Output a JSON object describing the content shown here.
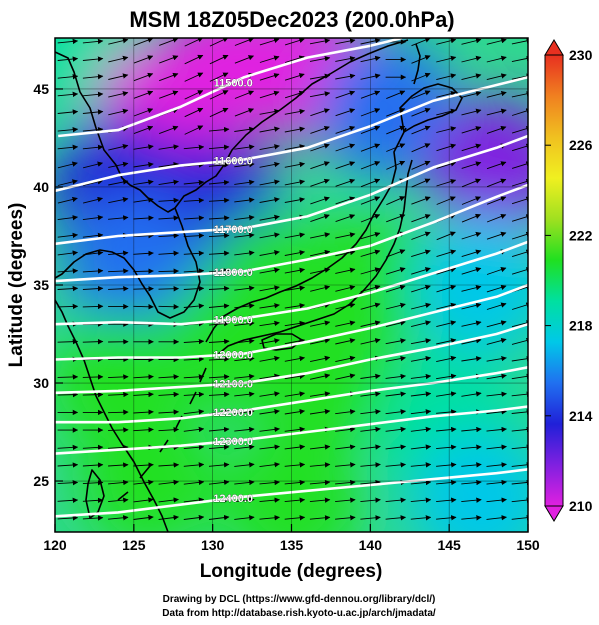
{
  "title": "MSM 18Z05Dec2023 (200.0hPa)",
  "credits": {
    "line1": "Drawing by DCL (https://www.gfd-dennou.org/library/dcl/)",
    "line2": "Data from http://database.rish.kyoto-u.ac.jp/arch/jmadata/"
  },
  "chart_data": {
    "type": "heatmap",
    "title": "MSM 18Z05Dec2023 (200.0hPa)",
    "xlabel": "Longitude (degrees)",
    "ylabel": "Latitude  (degrees)",
    "xlim": [
      120,
      150
    ],
    "ylim": [
      22.4,
      47.6
    ],
    "x_ticks": [
      "120",
      "125",
      "130",
      "135",
      "140",
      "145",
      "150"
    ],
    "y_ticks": [
      "25",
      "30",
      "35",
      "40",
      "45"
    ],
    "grid": true,
    "colorbar": {
      "range": [
        210,
        230
      ],
      "tick_labels": [
        "210",
        "214",
        "218",
        "222",
        "226",
        "230"
      ],
      "colors": [
        "#e020e0",
        "#8020e0",
        "#2020d8",
        "#2070f0",
        "#00c8e8",
        "#00e0a0",
        "#20e020",
        "#a0e020",
        "#f0f020",
        "#f0c020",
        "#f08020",
        "#e83020"
      ]
    },
    "contours": [
      {
        "label": "11500.0",
        "points": [
          [
            120.2,
            42.6
          ],
          [
            124,
            42.9
          ],
          [
            128,
            44.1
          ],
          [
            132,
            45.6
          ],
          [
            136,
            46.6
          ],
          [
            140,
            47.2
          ],
          [
            142,
            47.6
          ]
        ]
      },
      {
        "label": "11600.0",
        "points": [
          [
            120,
            39.8
          ],
          [
            124,
            40.6
          ],
          [
            128,
            41.1
          ],
          [
            132,
            41.4
          ],
          [
            136,
            42.0
          ],
          [
            140,
            43.1
          ],
          [
            144,
            44.4
          ],
          [
            148,
            45.2
          ],
          [
            150,
            45.6
          ]
        ]
      },
      {
        "label": "11700.0",
        "points": [
          [
            120,
            37.1
          ],
          [
            124,
            37.5
          ],
          [
            128,
            37.7
          ],
          [
            132,
            37.9
          ],
          [
            136,
            38.5
          ],
          [
            140,
            39.6
          ],
          [
            144,
            41.0
          ],
          [
            148,
            42.0
          ],
          [
            150,
            42.6
          ]
        ]
      },
      {
        "label": "11800.0",
        "points": [
          [
            120,
            35.2
          ],
          [
            124,
            35.4
          ],
          [
            128,
            35.5
          ],
          [
            132,
            35.7
          ],
          [
            136,
            36.3
          ],
          [
            140,
            37.0
          ],
          [
            144,
            38.2
          ],
          [
            148,
            39.5
          ],
          [
            150,
            40.1
          ]
        ]
      },
      {
        "label": "11900.0",
        "points": [
          [
            120,
            33.0
          ],
          [
            124,
            33.1
          ],
          [
            128,
            33.0
          ],
          [
            132,
            33.3
          ],
          [
            136,
            33.8
          ],
          [
            140,
            34.6
          ],
          [
            144,
            35.6
          ],
          [
            148,
            36.6
          ],
          [
            150,
            37.2
          ]
        ]
      },
      {
        "label": "12000.0",
        "points": [
          [
            120,
            31.2
          ],
          [
            124,
            31.3
          ],
          [
            128,
            31.3
          ],
          [
            132,
            31.5
          ],
          [
            136,
            32.1
          ],
          [
            140,
            32.8
          ],
          [
            144,
            33.6
          ],
          [
            148,
            34.4
          ],
          [
            150,
            35.0
          ]
        ]
      },
      {
        "label": "12100.0",
        "points": [
          [
            120,
            29.5
          ],
          [
            124,
            29.6
          ],
          [
            128,
            29.8
          ],
          [
            132,
            30.0
          ],
          [
            136,
            30.5
          ],
          [
            140,
            31.2
          ],
          [
            144,
            31.8
          ],
          [
            148,
            32.5
          ],
          [
            150,
            33.0
          ]
        ]
      },
      {
        "label": "12200.0",
        "points": [
          [
            120,
            28.0
          ],
          [
            124,
            28.0
          ],
          [
            128,
            28.2
          ],
          [
            132,
            28.6
          ],
          [
            136,
            29.1
          ],
          [
            140,
            29.6
          ],
          [
            144,
            30.0
          ],
          [
            148,
            30.5
          ],
          [
            150,
            30.8
          ]
        ]
      },
      {
        "label": "12300.0",
        "points": [
          [
            120,
            26.4
          ],
          [
            124,
            26.6
          ],
          [
            128,
            26.8
          ],
          [
            132,
            27.1
          ],
          [
            136,
            27.5
          ],
          [
            140,
            27.9
          ],
          [
            144,
            28.3
          ],
          [
            148,
            28.6
          ],
          [
            150,
            28.8
          ]
        ]
      },
      {
        "label": "12400.0",
        "points": [
          [
            120,
            23.2
          ],
          [
            124,
            23.4
          ],
          [
            128,
            23.8
          ],
          [
            132,
            24.2
          ],
          [
            136,
            24.5
          ],
          [
            140,
            24.8
          ],
          [
            144,
            25.1
          ],
          [
            148,
            25.4
          ],
          [
            150,
            25.6
          ]
        ]
      }
    ],
    "temperature_field": [
      {
        "lon": 121,
        "lat": 47,
        "value": 219
      },
      {
        "lon": 131,
        "lat": 46,
        "value": 211
      },
      {
        "lon": 136,
        "lat": 46,
        "value": 211
      },
      {
        "lon": 127,
        "lat": 44,
        "value": 211
      },
      {
        "lon": 124,
        "lat": 40,
        "value": 214
      },
      {
        "lon": 130,
        "lat": 39,
        "value": 214
      },
      {
        "lon": 141,
        "lat": 44,
        "value": 215
      },
      {
        "lon": 148,
        "lat": 41,
        "value": 212
      },
      {
        "lon": 125,
        "lat": 36,
        "value": 216
      },
      {
        "lon": 134,
        "lat": 35,
        "value": 220
      },
      {
        "lon": 140,
        "lat": 35,
        "value": 221
      },
      {
        "lon": 147,
        "lat": 35,
        "value": 217
      },
      {
        "lon": 131,
        "lat": 32,
        "value": 221
      },
      {
        "lon": 124,
        "lat": 30,
        "value": 220
      },
      {
        "lon": 137,
        "lat": 30,
        "value": 221
      },
      {
        "lon": 145,
        "lat": 28,
        "value": 219
      },
      {
        "lon": 126,
        "lat": 25,
        "value": 221
      },
      {
        "lon": 135,
        "lat": 24,
        "value": 220
      },
      {
        "lon": 147,
        "lat": 24,
        "value": 218
      }
    ]
  }
}
